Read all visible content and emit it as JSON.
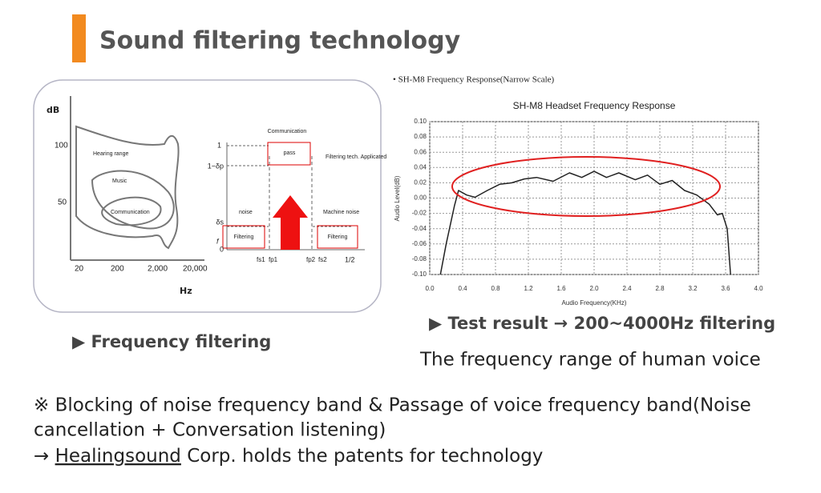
{
  "title": "Sound filtering technology",
  "hearing_diagram": {
    "y_unit": "dB",
    "y_labels": [
      "100",
      "50"
    ],
    "x_labels": [
      "20",
      "200",
      "2,000",
      "20,000"
    ],
    "x_unit": "Hz",
    "regions": [
      "Hearing range",
      "Music",
      "Communication"
    ]
  },
  "filter_diagram": {
    "top_label": "Communication",
    "pass_box": "pass",
    "applied": "Filtering tech. Applicated",
    "left_label": "noise",
    "right_label": "Machine noise",
    "filter_boxes": [
      "Filtering",
      "Filtering"
    ],
    "y_labels": [
      "1",
      "1−δp",
      "δs",
      "0"
    ],
    "x_labels": [
      "fs1",
      "fp1",
      "fp2",
      "fs2",
      "1/2"
    ],
    "axis_f": "f"
  },
  "left_caption": "▶ Frequency filtering",
  "chart_data": {
    "type": "line",
    "heading": "• SH-M8  Frequency Response(Narrow Scale)",
    "title": "SH-M8 Headset Frequency Response",
    "x_label": "Audio Frequency(KHz)",
    "y_label": "Audio Level(dB)",
    "x": [
      0.13,
      0.2,
      0.3,
      0.35,
      0.45,
      0.55,
      0.7,
      0.85,
      1.0,
      1.15,
      1.3,
      1.5,
      1.7,
      1.85,
      2.0,
      2.15,
      2.3,
      2.5,
      2.65,
      2.8,
      2.95,
      3.1,
      3.25,
      3.4,
      3.5,
      3.56,
      3.62,
      3.66
    ],
    "series": [
      {
        "color": "#222222",
        "values": [
          -0.1,
          -0.06,
          -0.01,
          0.01,
          0.004,
          0.001,
          0.01,
          0.018,
          0.02,
          0.025,
          0.027,
          0.022,
          0.033,
          0.027,
          0.035,
          0.027,
          0.033,
          0.024,
          0.03,
          0.018,
          0.023,
          0.01,
          0.004,
          -0.008,
          -0.022,
          -0.02,
          -0.04,
          -0.1
        ]
      }
    ],
    "xlim": [
      0,
      4
    ],
    "ylim": [
      -0.1,
      0.1
    ],
    "xticks": [
      {
        "value": 0,
        "label": "0.0"
      },
      0.4,
      0.8,
      1.2,
      1.6,
      {
        "value": 2,
        "label": "2.0"
      },
      2.4,
      2.8,
      3.2,
      3.6,
      {
        "value": 4,
        "label": "4.0"
      }
    ],
    "yticks": [
      {
        "value": 0.1,
        "label": "0.10"
      },
      {
        "value": 0.08,
        "label": "0.08"
      },
      {
        "value": 0.06,
        "label": "0.06"
      },
      {
        "value": 0.04,
        "label": "0.04"
      },
      {
        "value": 0.02,
        "label": "0.02"
      },
      {
        "value": 0,
        "label": "0.00"
      },
      {
        "value": -0.02,
        "label": "-0.02"
      },
      {
        "value": -0.04,
        "label": "-0.04"
      },
      {
        "value": -0.06,
        "label": "-0.06"
      },
      {
        "value": -0.08,
        "label": "-0.08"
      },
      {
        "value": -0.1,
        "label": "-0.10"
      }
    ],
    "grid": true
  },
  "right_caption": "▶ Test result → 200~4000Hz filtering",
  "right_subcaption": "The frequency range of human voice",
  "notes": [
    "※ Blocking of noise frequency band & Passage of voice frequency band(Noise",
    "cancellation + Conversation listening)",
    [
      "→ ",
      "Healingsound",
      " Corp. holds the patents for technology"
    ]
  ]
}
